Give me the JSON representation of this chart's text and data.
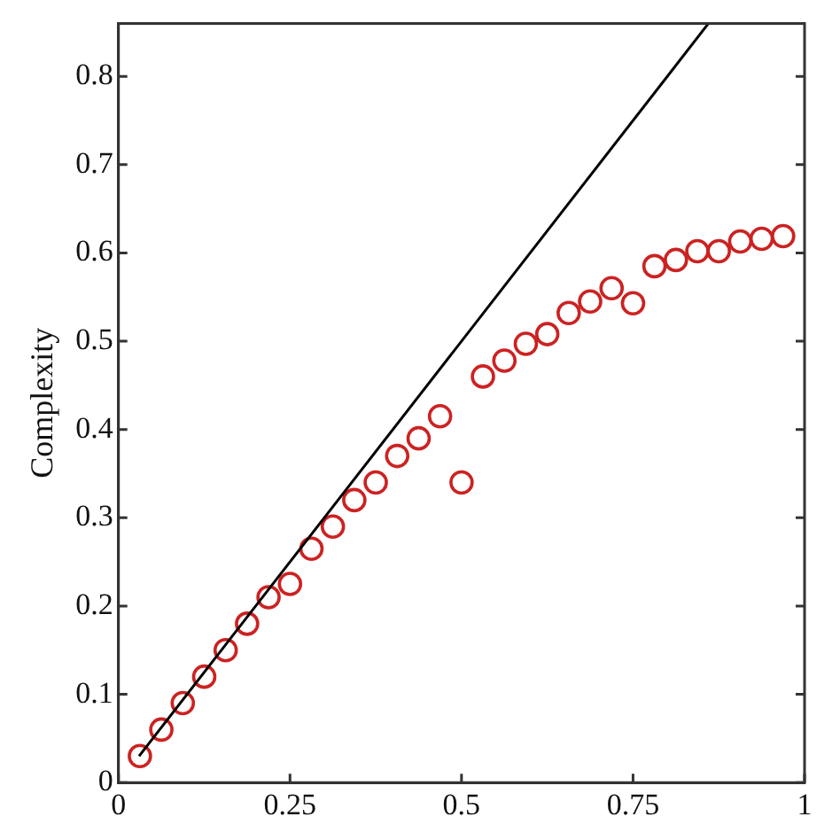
{
  "chart_data": {
    "type": "scatter",
    "ylabel": "Complexity",
    "xlim": [
      0,
      1
    ],
    "xticks": [
      0,
      0.25,
      0.5,
      0.75,
      1
    ],
    "ylim": [
      0,
      0.86
    ],
    "yticks": [
      0,
      0.1,
      0.2,
      0.3,
      0.4,
      0.5,
      0.6,
      0.7,
      0.8
    ],
    "grid": false,
    "legend": false,
    "series": [
      {
        "type": "line",
        "color": "#000000",
        "marker": "none",
        "line_style": "solid",
        "x": [
          0.03,
          0.86
        ],
        "values": [
          0.03,
          0.86
        ]
      },
      {
        "type": "scatter",
        "color": "#cc2222",
        "marker": "circle",
        "x": [
          0.03125,
          0.0625,
          0.09375,
          0.125,
          0.15625,
          0.1875,
          0.21875,
          0.25,
          0.28125,
          0.3125,
          0.34375,
          0.375,
          0.40625,
          0.4375,
          0.46875,
          0.5,
          0.53125,
          0.5625,
          0.59375,
          0.625,
          0.65625,
          0.6875,
          0.71875,
          0.75,
          0.78125,
          0.8125,
          0.84375,
          0.875,
          0.90625,
          0.9375,
          0.96875
        ],
        "values": [
          0.03,
          0.06,
          0.09,
          0.12,
          0.15,
          0.18,
          0.21,
          0.225,
          0.265,
          0.29,
          0.32,
          0.34,
          0.37,
          0.39,
          0.415,
          0.34,
          0.46,
          0.478,
          0.497,
          0.508,
          0.532,
          0.545,
          0.56,
          0.543,
          0.585,
          0.592,
          0.602,
          0.602,
          0.613,
          0.616,
          0.619
        ]
      }
    ]
  }
}
